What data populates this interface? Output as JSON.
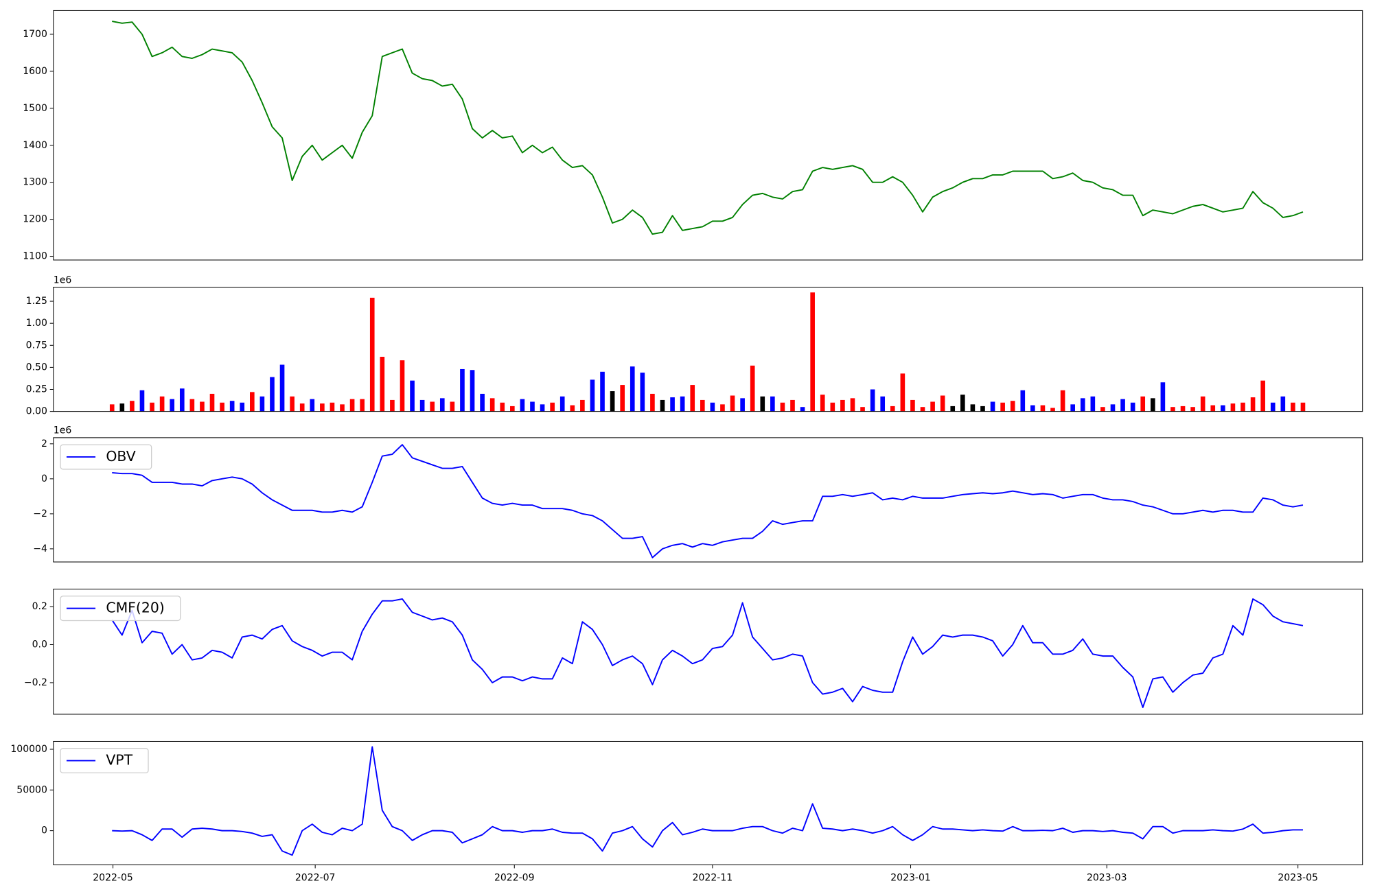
{
  "chart_data": [
    {
      "type": "line",
      "series": [
        {
          "color": "green",
          "values": [
            1735,
            1730,
            1733,
            1700,
            1640,
            1650,
            1665,
            1640,
            1635,
            1645,
            1660,
            1655,
            1650,
            1625,
            1575,
            1515,
            1450,
            1420,
            1305,
            1370,
            1400,
            1360,
            1380,
            1400,
            1365,
            1435,
            1480,
            1640,
            1650,
            1660,
            1595,
            1580,
            1575,
            1560,
            1565,
            1525,
            1445,
            1420,
            1440,
            1420,
            1425,
            1380,
            1400,
            1380,
            1395,
            1360,
            1340,
            1345,
            1320,
            1260,
            1190,
            1200,
            1225,
            1205,
            1160,
            1165,
            1210,
            1170,
            1175,
            1180,
            1195,
            1195,
            1205,
            1240,
            1265,
            1270,
            1260,
            1255,
            1275,
            1280,
            1330,
            1340,
            1335,
            1340,
            1345,
            1335,
            1300,
            1300,
            1315,
            1300,
            1265,
            1220,
            1260,
            1275,
            1285,
            1300,
            1310,
            1310,
            1320,
            1320,
            1330,
            1330,
            1330,
            1330,
            1310,
            1315,
            1325,
            1305,
            1300,
            1285,
            1280,
            1265,
            1265,
            1210,
            1225,
            1220,
            1215,
            1225,
            1235,
            1240,
            1230,
            1220,
            1225,
            1230,
            1275,
            1245,
            1230,
            1205,
            1210,
            1220
          ]
        }
      ],
      "xlim": [
        -5.86,
        124.95
      ],
      "ylim": [
        1090,
        1764
      ],
      "yticks": [
        1100,
        1200,
        1300,
        1400,
        1500,
        1600,
        1700
      ]
    },
    {
      "type": "bar",
      "offset_label": "1e6",
      "values": [
        0.08,
        0.09,
        0.12,
        0.24,
        0.1,
        0.17,
        0.14,
        0.26,
        0.14,
        0.11,
        0.2,
        0.1,
        0.12,
        0.1,
        0.22,
        0.17,
        0.39,
        0.53,
        0.17,
        0.09,
        0.14,
        0.09,
        0.1,
        0.08,
        0.14,
        0.14,
        1.29,
        0.62,
        0.13,
        0.58,
        0.35,
        0.13,
        0.11,
        0.15,
        0.11,
        0.48,
        0.47,
        0.2,
        0.15,
        0.1,
        0.06,
        0.14,
        0.11,
        0.08,
        0.1,
        0.17,
        0.07,
        0.13,
        0.36,
        0.45,
        0.23,
        0.3,
        0.51,
        0.44,
        0.2,
        0.13,
        0.16,
        0.17,
        0.3,
        0.13,
        0.1,
        0.08,
        0.18,
        0.15,
        0.52,
        0.17,
        0.17,
        0.1,
        0.13,
        0.05,
        1.35,
        0.19,
        0.1,
        0.13,
        0.15,
        0.05,
        0.25,
        0.17,
        0.06,
        0.43,
        0.13,
        0.05,
        0.11,
        0.18,
        0.06,
        0.19,
        0.08,
        0.06,
        0.11,
        0.1,
        0.12,
        0.24,
        0.07,
        0.07,
        0.04,
        0.24,
        0.08,
        0.15,
        0.17,
        0.05,
        0.08,
        0.14,
        0.1,
        0.17,
        0.15,
        0.33,
        0.05,
        0.06,
        0.05,
        0.17,
        0.07,
        0.07,
        0.09,
        0.1,
        0.16,
        0.35,
        0.1,
        0.17,
        0.1,
        0.1
      ],
      "colors": [
        "red",
        "black",
        "red",
        "blue",
        "red",
        "red",
        "blue",
        "blue",
        "red",
        "red",
        "red",
        "red",
        "blue",
        "blue",
        "red",
        "blue",
        "blue",
        "blue",
        "red",
        "red",
        "blue",
        "red",
        "red",
        "red",
        "red",
        "red",
        "red",
        "red",
        "red",
        "red",
        "blue",
        "blue",
        "red",
        "blue",
        "red",
        "blue",
        "blue",
        "blue",
        "red",
        "red",
        "red",
        "blue",
        "blue",
        "blue",
        "red",
        "blue",
        "red",
        "red",
        "blue",
        "blue",
        "black",
        "red",
        "blue",
        "blue",
        "red",
        "black",
        "blue",
        "blue",
        "red",
        "red",
        "blue",
        "red",
        "red",
        "blue",
        "red",
        "black",
        "blue",
        "red",
        "red",
        "blue",
        "red",
        "red",
        "red",
        "red",
        "red",
        "red",
        "blue",
        "blue",
        "red",
        "red",
        "red",
        "red",
        "red",
        "red",
        "black",
        "black",
        "black",
        "black",
        "blue",
        "red",
        "red",
        "blue",
        "blue",
        "red",
        "red",
        "red",
        "blue",
        "blue",
        "blue",
        "red",
        "blue",
        "blue",
        "blue",
        "red",
        "black",
        "blue",
        "red",
        "red",
        "red",
        "red",
        "red",
        "blue",
        "red",
        "red",
        "red",
        "red",
        "blue",
        "blue",
        "red",
        "red"
      ],
      "xlim": [
        -5.86,
        124.95
      ],
      "ylim": [
        0,
        1.41
      ],
      "yticks": [
        {
          "value": 0,
          "label": "0.00"
        },
        0.25,
        {
          "value": 0.5,
          "label": "0.50"
        },
        0.75,
        {
          "value": 1,
          "label": "1.00"
        },
        1.25
      ]
    },
    {
      "type": "line",
      "offset_label": "1e6",
      "legend": "upper left",
      "series": [
        {
          "name": "OBV",
          "color": "blue",
          "values": [
            0.35,
            0.3,
            0.3,
            0.2,
            -0.2,
            -0.2,
            -0.2,
            -0.3,
            -0.3,
            -0.4,
            -0.1,
            0,
            0.1,
            0,
            -0.3,
            -0.8,
            -1.2,
            -1.5,
            -1.8,
            -1.8,
            -1.8,
            -1.9,
            -1.9,
            -1.8,
            -1.9,
            -1.6,
            -0.2,
            1.3,
            1.4,
            1.95,
            1.2,
            1.0,
            0.8,
            0.6,
            0.6,
            0.7,
            -0.2,
            -1.1,
            -1.4,
            -1.5,
            -1.4,
            -1.5,
            -1.5,
            -1.7,
            -1.7,
            -1.7,
            -1.8,
            -2.0,
            -2.1,
            -2.4,
            -2.9,
            -3.4,
            -3.4,
            -3.3,
            -4.5,
            -4.0,
            -3.8,
            -3.7,
            -3.9,
            -3.7,
            -3.8,
            -3.6,
            -3.5,
            -3.4,
            -3.4,
            -3.0,
            -2.4,
            -2.6,
            -2.5,
            -2.4,
            -2.4,
            -1.0,
            -1.0,
            -0.9,
            -1.0,
            -0.9,
            -0.8,
            -1.2,
            -1.1,
            -1.2,
            -1.0,
            -1.1,
            -1.1,
            -1.1,
            -1.0,
            -0.9,
            -0.85,
            -0.8,
            -0.85,
            -0.8,
            -0.7,
            -0.8,
            -0.9,
            -0.85,
            -0.9,
            -1.1,
            -1.0,
            -0.9,
            -0.9,
            -1.1,
            -1.2,
            -1.2,
            -1.3,
            -1.5,
            -1.6,
            -1.8,
            -2.0,
            -2.0,
            -1.9,
            -1.8,
            -1.9,
            -1.8,
            -1.8,
            -1.9,
            -1.9,
            -1.1,
            -1.2,
            -1.5,
            -1.6,
            -1.5
          ]
        }
      ],
      "xlim": [
        -5.86,
        124.95
      ],
      "ylim": [
        -4.75,
        2.35
      ],
      "yticks": [
        {
          "value": -4,
          "label": "−4"
        },
        {
          "value": -2,
          "label": "−2"
        },
        0,
        2
      ]
    },
    {
      "type": "line",
      "legend": "upper left",
      "series": [
        {
          "name": "CMF(20)",
          "color": "blue",
          "values": [
            0.13,
            0.05,
            0.18,
            0.01,
            0.07,
            0.06,
            -0.05,
            0,
            -0.08,
            -0.07,
            -0.03,
            -0.04,
            -0.07,
            0.04,
            0.05,
            0.03,
            0.08,
            0.1,
            0.02,
            -0.01,
            -0.03,
            -0.06,
            -0.04,
            -0.04,
            -0.08,
            0.07,
            0.16,
            0.23,
            0.23,
            0.24,
            0.17,
            0.15,
            0.13,
            0.14,
            0.12,
            0.05,
            -0.08,
            -0.13,
            -0.2,
            -0.17,
            -0.17,
            -0.19,
            -0.17,
            -0.18,
            -0.18,
            -0.07,
            -0.1,
            0.12,
            0.08,
            0,
            -0.11,
            -0.08,
            -0.06,
            -0.1,
            -0.21,
            -0.08,
            -0.03,
            -0.06,
            -0.1,
            -0.08,
            -0.02,
            -0.01,
            0.05,
            0.22,
            0.04,
            -0.02,
            -0.08,
            -0.07,
            -0.05,
            -0.06,
            -0.2,
            -0.26,
            -0.25,
            -0.23,
            -0.3,
            -0.22,
            -0.24,
            -0.25,
            -0.25,
            -0.09,
            0.04,
            -0.05,
            -0.01,
            0.05,
            0.04,
            0.05,
            0.05,
            0.04,
            0.02,
            -0.06,
            0,
            0.1,
            0.01,
            0.01,
            -0.05,
            -0.05,
            -0.03,
            0.03,
            -0.05,
            -0.06,
            -0.06,
            -0.12,
            -0.17,
            -0.33,
            -0.18,
            -0.17,
            -0.25,
            -0.2,
            -0.16,
            -0.15,
            -0.07,
            -0.05,
            0.1,
            0.05,
            0.24,
            0.21,
            0.15,
            0.12,
            0.11,
            0.1
          ]
        }
      ],
      "xlim": [
        -5.86,
        124.95
      ],
      "ylim": [
        -0.366,
        0.292
      ],
      "yticks": [
        {
          "value": -0.2,
          "label": "−0.2"
        },
        {
          "value": 0,
          "label": "0.0"
        },
        0.2
      ]
    },
    {
      "type": "line",
      "legend": "upper left",
      "series": [
        {
          "name": "VPT",
          "color": "blue",
          "values": [
            0,
            -500,
            0,
            -5000,
            -12000,
            2000,
            2000,
            -8000,
            2000,
            3000,
            2000,
            0,
            0,
            -1000,
            -3000,
            -7000,
            -5000,
            -25000,
            -30000,
            0,
            8000,
            -2000,
            -5000,
            3000,
            0,
            8000,
            103000,
            25000,
            5000,
            0,
            -12000,
            -5000,
            0,
            0,
            -2000,
            -15000,
            -10000,
            -5000,
            5000,
            0,
            0,
            -2000,
            0,
            0,
            2000,
            -2000,
            -3000,
            -3000,
            -10000,
            -25000,
            -3000,
            0,
            5000,
            -10000,
            -20000,
            0,
            10000,
            -5000,
            -2000,
            2000,
            0,
            0,
            0,
            3000,
            5000,
            5000,
            0,
            -3000,
            3000,
            0,
            33000,
            3000,
            2000,
            0,
            2000,
            0,
            -3000,
            0,
            5000,
            -5000,
            -12000,
            -5000,
            5000,
            2000,
            2000,
            1000,
            0,
            1000,
            0,
            -500,
            5000,
            0,
            0,
            500,
            0,
            3000,
            -2000,
            0,
            0,
            -1000,
            0,
            -2000,
            -3000,
            -10000,
            5000,
            5000,
            -3000,
            0,
            0,
            0,
            1000,
            0,
            -500,
            2000,
            8000,
            -3000,
            -2000,
            0,
            1000,
            1000
          ]
        }
      ],
      "xlim": [
        -5.86,
        124.95
      ],
      "ylim": [
        -41900,
        109700
      ],
      "yticks": [
        0,
        50000,
        100000
      ],
      "xticks": [
        {
          "value": 0.09,
          "label": "2022-05"
        },
        {
          "value": 20.3,
          "label": "2022-07"
        },
        {
          "value": 40.2,
          "label": "2022-09"
        },
        {
          "value": 60.0,
          "label": "2022-11"
        },
        {
          "value": 79.8,
          "label": "2023-01"
        },
        {
          "value": 99.4,
          "label": "2023-03"
        },
        {
          "value": 118.5,
          "label": "2023-05"
        }
      ]
    }
  ]
}
